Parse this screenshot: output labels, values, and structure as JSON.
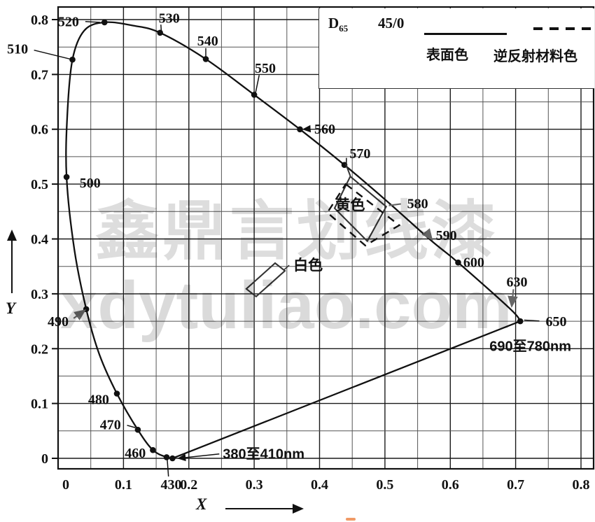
{
  "watermark": {
    "line1": "鑫鼎言划线漆",
    "line2": "xdytuliao.com"
  },
  "legend": {
    "illuminant_main": "D",
    "illuminant_sub": "65",
    "geometry": "45/0",
    "solid_label": "表面色",
    "dashed_label": "逆反射材料色"
  },
  "axes": {
    "x_label": "X",
    "y_label": "Y",
    "x_ticks": [
      "0",
      "0.1",
      "0.2",
      "0.3",
      "0.4",
      "0.5",
      "0.6",
      "0.7",
      "0.8"
    ],
    "y_ticks": [
      "0",
      "0.1",
      "0.2",
      "0.3",
      "0.4",
      "0.5",
      "0.6",
      "0.7",
      "0.8"
    ],
    "x_range": [
      0,
      0.8
    ],
    "y_range": [
      0,
      0.8
    ],
    "grid_step": 0.05
  },
  "chart_data": {
    "type": "line",
    "xlabel": "X",
    "ylabel": "Y",
    "xlim": [
      0,
      0.8
    ],
    "ylim": [
      0,
      0.8
    ],
    "grid": true,
    "legend_position": "top-right",
    "series": [
      {
        "name": "spectral-locus",
        "style": "solid",
        "closed": true,
        "points": [
          {
            "x": 0.175,
            "y": 0.0,
            "dot": true,
            "wl": "380至410nm"
          },
          {
            "x": 0.166,
            "y": 0.002,
            "dot": true,
            "wl": "430"
          },
          {
            "x": 0.145,
            "y": 0.015,
            "dot": true,
            "wl": "460"
          },
          {
            "x": 0.122,
            "y": 0.052,
            "dot": true,
            "wl": "470"
          },
          {
            "x": 0.09,
            "y": 0.118,
            "dot": true,
            "wl": "480"
          },
          {
            "x": 0.063,
            "y": 0.19,
            "dot": false
          },
          {
            "x": 0.043,
            "y": 0.272,
            "dot": true,
            "wl": "490"
          },
          {
            "x": 0.025,
            "y": 0.38,
            "dot": false
          },
          {
            "x": 0.013,
            "y": 0.513,
            "dot": true,
            "wl": "500"
          },
          {
            "x": 0.014,
            "y": 0.625,
            "dot": false
          },
          {
            "x": 0.022,
            "y": 0.727,
            "dot": true,
            "wl": "510"
          },
          {
            "x": 0.04,
            "y": 0.78,
            "dot": false
          },
          {
            "x": 0.071,
            "y": 0.795,
            "dot": true,
            "wl": "520"
          },
          {
            "x": 0.115,
            "y": 0.789,
            "dot": false
          },
          {
            "x": 0.156,
            "y": 0.776,
            "dot": true,
            "wl": "530"
          },
          {
            "x": 0.226,
            "y": 0.728,
            "dot": true,
            "wl": "540"
          },
          {
            "x": 0.3,
            "y": 0.663,
            "dot": true,
            "wl": "550"
          },
          {
            "x": 0.37,
            "y": 0.6,
            "dot": true,
            "wl": "560"
          },
          {
            "x": 0.438,
            "y": 0.535,
            "dot": true,
            "wl": "570"
          },
          {
            "x": 0.504,
            "y": 0.468,
            "dot": false,
            "wl": "580"
          },
          {
            "x": 0.57,
            "y": 0.398,
            "dot": false,
            "wl": "590"
          },
          {
            "x": 0.612,
            "y": 0.357,
            "dot": true,
            "wl": "600"
          },
          {
            "x": 0.692,
            "y": 0.272,
            "dot": false,
            "wl": "630"
          },
          {
            "x": 0.707,
            "y": 0.25,
            "dot": true,
            "wl": "650"
          }
        ]
      }
    ],
    "regions": [
      {
        "name": "region-white",
        "label": "白色",
        "style": "solid",
        "points": [
          [
            0.288,
            0.309
          ],
          [
            0.332,
            0.356
          ],
          [
            0.347,
            0.342
          ],
          [
            0.303,
            0.295
          ]
        ],
        "label_x": 0.36,
        "label_y": 0.352,
        "label_anchor": "start",
        "leader_to": [
          0.345,
          0.343
        ]
      },
      {
        "name": "region-yellow-surface",
        "label": "黄色",
        "style": "solid",
        "points": [
          [
            0.447,
            0.514
          ],
          [
            0.502,
            0.459
          ],
          [
            0.473,
            0.396
          ],
          [
            0.423,
            0.456
          ]
        ],
        "label_x": 0.447,
        "label_y": 0.462,
        "label_anchor": "middle"
      },
      {
        "name": "region-yellow-retroreflective",
        "style": "dashed",
        "points": [
          [
            0.44,
            0.5
          ],
          [
            0.522,
            0.425
          ],
          [
            0.47,
            0.388
          ],
          [
            0.412,
            0.448
          ]
        ]
      }
    ],
    "extra_segments": [
      {
        "x1": 0.44,
        "y1": 0.537,
        "x2": 0.447,
        "y2": 0.515
      }
    ],
    "annotations": [
      {
        "text": "510",
        "lx": -0.062,
        "ly": 0.747,
        "px": 0.022,
        "py": 0.727,
        "leader": true
      },
      {
        "text": "520",
        "lx": 0.016,
        "ly": 0.797,
        "px": 0.064,
        "py": 0.795,
        "leader": true
      },
      {
        "text": "530",
        "lx": 0.17,
        "ly": 0.803,
        "px": 0.158,
        "py": 0.778,
        "leader": true
      },
      {
        "text": "540",
        "lx": 0.229,
        "ly": 0.762,
        "px": 0.226,
        "py": 0.732,
        "leader": true
      },
      {
        "text": "550",
        "lx": 0.317,
        "ly": 0.712,
        "px": 0.302,
        "py": 0.666,
        "leader": true
      },
      {
        "text": "560",
        "lx": 0.408,
        "ly": 0.601,
        "px": 0.375,
        "py": 0.6,
        "leader": true,
        "arrow": true
      },
      {
        "text": "570",
        "lx": 0.462,
        "ly": 0.556,
        "px": 0.441,
        "py": 0.538,
        "leader": true
      },
      {
        "text": "580",
        "lx": 0.55,
        "ly": 0.465,
        "px": 0.506,
        "py": 0.461,
        "leader": true,
        "gray": true
      },
      {
        "text": "590",
        "lx": 0.594,
        "ly": 0.407,
        "px": 0.572,
        "py": 0.399,
        "leader": true,
        "arrow": true,
        "gray": true
      },
      {
        "text": "600",
        "lx": 0.636,
        "ly": 0.358,
        "leader": false
      },
      {
        "text": "630",
        "lx": 0.702,
        "ly": 0.322,
        "px": 0.694,
        "py": 0.277,
        "leader": true,
        "arrow": true,
        "gray": true
      },
      {
        "text": "650",
        "lx": 0.762,
        "ly": 0.25,
        "px": 0.713,
        "py": 0.252,
        "leader": true
      },
      {
        "text": "690至780nm",
        "lx": 0.66,
        "ly": 0.205,
        "leader": false,
        "anchor": "start"
      },
      {
        "text": "500",
        "lx": 0.033,
        "ly": 0.503,
        "leader": false,
        "anchor": "start"
      },
      {
        "text": "490",
        "lx": 0.0,
        "ly": 0.25,
        "px": 0.041,
        "py": 0.27,
        "leader": true,
        "arrow": true,
        "gray": true
      },
      {
        "text": "480",
        "lx": 0.062,
        "ly": 0.108,
        "leader": false
      },
      {
        "text": "470",
        "lx": 0.08,
        "ly": 0.062,
        "px": 0.118,
        "py": 0.056,
        "leader": true
      },
      {
        "text": "460",
        "lx": 0.118,
        "ly": 0.01,
        "leader": false
      },
      {
        "text": "430",
        "lx": 0.173,
        "ly": -0.047,
        "px": 0.167,
        "py": -0.002,
        "leader": true
      },
      {
        "text": "380至410nm",
        "lx": 0.252,
        "ly": 0.008,
        "px": 0.184,
        "py": 0.0,
        "leader": true,
        "arrow": true,
        "anchor": "start"
      }
    ]
  }
}
